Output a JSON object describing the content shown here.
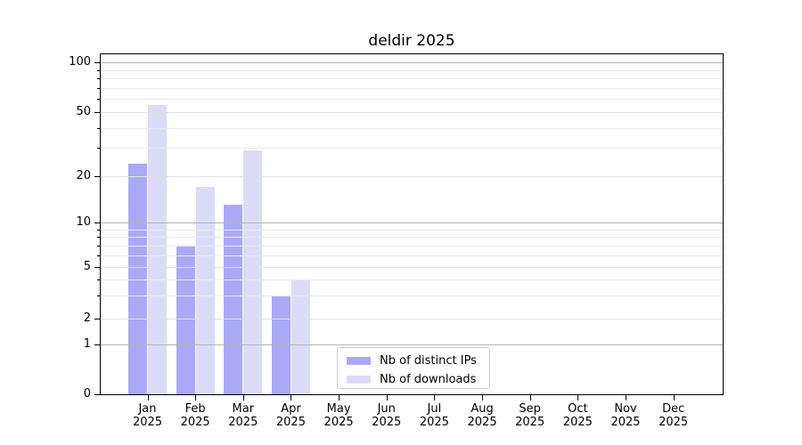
{
  "chart_data": {
    "type": "bar",
    "title": "deldir 2025",
    "x_categories": [
      "Jan",
      "Feb",
      "Mar",
      "Apr",
      "May",
      "Jun",
      "Jul",
      "Aug",
      "Sep",
      "Oct",
      "Nov",
      "Dec"
    ],
    "x_year": "2025",
    "series": [
      {
        "name": "Nb of distinct IPs",
        "color": "#a9a9f8",
        "values": [
          24,
          7,
          13,
          3,
          0,
          0,
          0,
          0,
          0,
          0,
          0,
          0
        ]
      },
      {
        "name": "Nb of downloads",
        "color": "#dcdcf9",
        "values": [
          55,
          17,
          29,
          4,
          0,
          0,
          0,
          0,
          0,
          0,
          0,
          0
        ]
      }
    ],
    "y_axis": {
      "scale": "log-like",
      "tick_values": [
        0,
        1,
        2,
        5,
        10,
        20,
        50,
        100
      ],
      "tick_labels": [
        "0",
        "1",
        "2",
        "5",
        "10",
        "20",
        "50",
        "100"
      ],
      "minor_tick_values": [
        3,
        4,
        6,
        7,
        8,
        9,
        30,
        40,
        60,
        70,
        80,
        90
      ],
      "range": [
        0,
        112
      ]
    },
    "legend": {
      "position": "lower center",
      "entries": [
        "Nb of distinct IPs",
        "Nb of downloads"
      ]
    },
    "grid": "horizontal"
  },
  "colors": {
    "grid_major": "#b3b3b3",
    "grid_mid": "#e0e0e0",
    "grid_minor": "#eaeaea",
    "spine": "#000000",
    "legend_border": "#cccccc"
  }
}
